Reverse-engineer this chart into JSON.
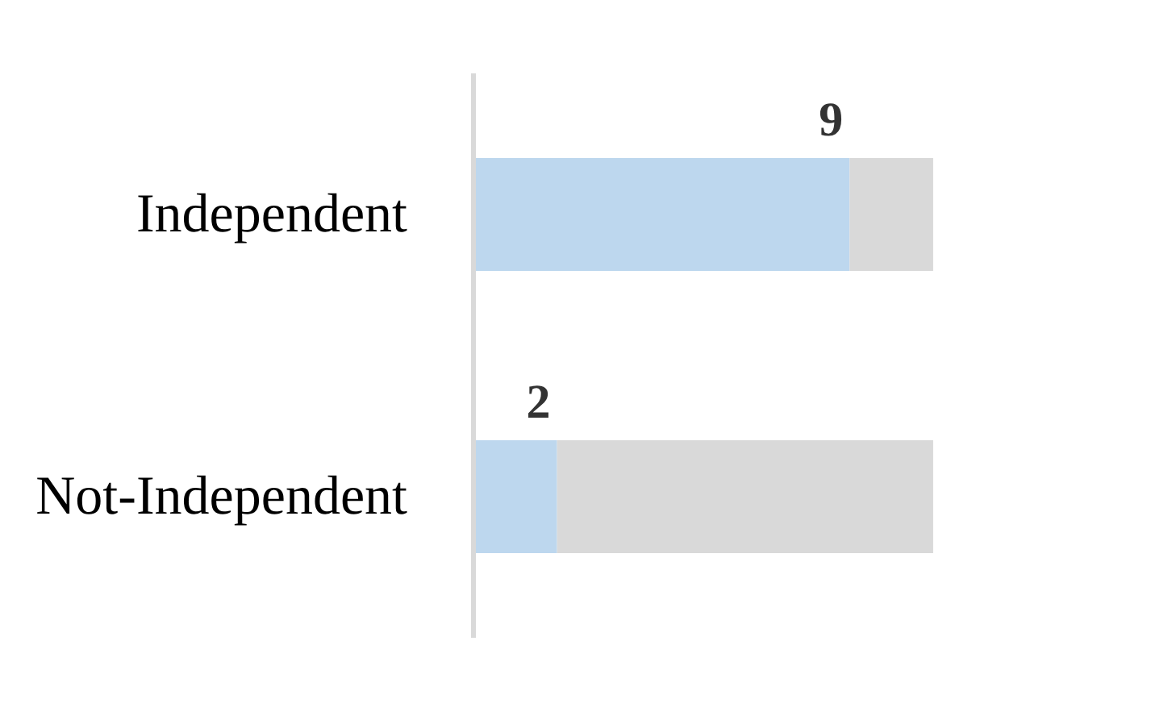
{
  "chart_data": {
    "type": "bar",
    "orientation": "horizontal",
    "stacked": true,
    "tick_labels": "y",
    "grid": false,
    "categories": [
      "Independent",
      "Not-Independent"
    ],
    "series": [
      {
        "color": "#bdd7ee",
        "values": [
          9,
          2
        ],
        "value_labels": [
          "9",
          "2"
        ]
      },
      {
        "color": "#d9d9d9",
        "values": [
          2,
          9
        ]
      }
    ]
  }
}
